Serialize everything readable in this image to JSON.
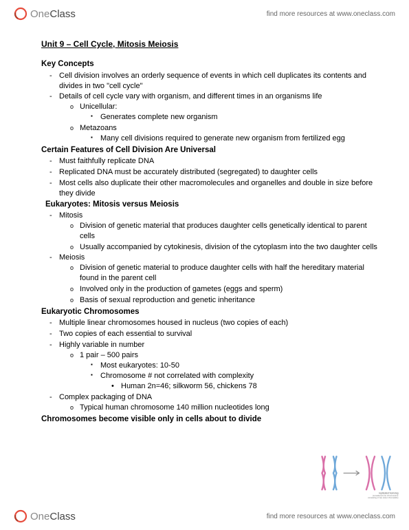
{
  "brand": {
    "logo_one": "One",
    "logo_class": "Class",
    "tagline": "find more resources at www.oneclass.com",
    "logo_color_ring": "#e74c3c",
    "logo_color_text": "#555555"
  },
  "doc": {
    "title": "Unit 9 – Cell Cycle, Mitosis Meiosis",
    "sections": [
      {
        "heading": "Key Concepts",
        "level": 1,
        "items": [
          {
            "t": "Cell division involves an orderly sequence of events in which cell duplicates its contents and divides in two \"cell cycle\""
          },
          {
            "t": "Details of cell cycle vary with organism, and different times in an organisms life",
            "sub": [
              {
                "t": "Unicellular:",
                "sub": [
                  {
                    "t": "Generates complete new organism"
                  }
                ]
              },
              {
                "t": "Metazoans",
                "sub": [
                  {
                    "t": "Many cell divisions required to generate new organism from fertilized egg"
                  }
                ]
              }
            ]
          }
        ]
      },
      {
        "heading": "Certain Features of Cell Division Are Universal",
        "level": 1,
        "items": [
          {
            "t": "Must faithfully replicate DNA"
          },
          {
            "t": "Replicated DNA must be accurately distributed (segregated) to daughter cells"
          },
          {
            "t": "Most cells also duplicate their other macromolecules and organelles and double in size before they divide"
          }
        ]
      },
      {
        "heading": "Eukaryotes: Mitosis versus Meiosis",
        "level": 2,
        "items": [
          {
            "t": "Mitosis",
            "sub": [
              {
                "t": "Division of genetic material that produces daughter cells genetically identical to parent cells"
              },
              {
                "t": "Usually accompanied by cytokinesis, division of the cytoplasm into the two daughter cells"
              }
            ]
          },
          {
            "t": "Meiosis",
            "sub": [
              {
                "t": "Division of genetic material to produce daughter cells with half the hereditary material found in the parent cell"
              },
              {
                "t": "Involved only in the production of gametes (eggs and sperm)"
              },
              {
                "t": "Basis of sexual reproduction and genetic inheritance"
              }
            ]
          }
        ]
      },
      {
        "heading": "Eukaryotic Chromosomes",
        "level": 1,
        "items": [
          {
            "t": "Multiple linear chromosomes housed in nucleus (two copies of each)"
          },
          {
            "t": "Two copies of each essential to survival"
          },
          {
            "t": "Highly variable in number",
            "sub": [
              {
                "t": "1 pair – 500 pairs",
                "sub": [
                  {
                    "t": "Most eukaryotes: 10-50"
                  },
                  {
                    "t": "Chromosome # not correlated with complexity",
                    "sub": [
                      {
                        "t": "Human 2n=46; silkworm 56, chickens 78"
                      }
                    ]
                  }
                ]
              }
            ]
          },
          {
            "t": "Complex packaging of DNA",
            "sub": [
              {
                "t": "Typical human chromosome 140 million nucleotides long"
              }
            ]
          }
        ]
      },
      {
        "heading": "Chromosomes become visible only in cells about to divide",
        "level": 1,
        "items": []
      }
    ]
  },
  "diagram": {
    "chrom_colors": [
      "#d96fa8",
      "#6fa8d9"
    ],
    "arrow_color": "#888888",
    "caption1": "replicated homolog",
    "caption2": "(considered one chromosome consisting of two sister chromatids)"
  }
}
